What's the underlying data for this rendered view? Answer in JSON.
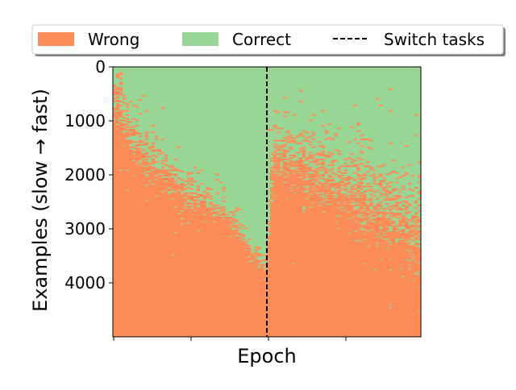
{
  "chart_data": {
    "type": "heatmap",
    "title": "",
    "xlabel": "Epoch",
    "ylabel": "Examples (slow → fast)",
    "y_ticks": [
      0,
      1000,
      2000,
      3000,
      4000
    ],
    "ylim": [
      5000,
      0
    ],
    "y_inverted": true,
    "x_tick_count": 4,
    "x_tick_labels_visible": false,
    "legend": {
      "placement": "top",
      "entries": [
        {
          "label": "Wrong",
          "kind": "patch",
          "color": "#fc8d59"
        },
        {
          "label": "Correct",
          "kind": "patch",
          "color": "#99d594"
        },
        {
          "label": "Switch tasks",
          "kind": "dashed-line",
          "color": "#000000"
        }
      ]
    },
    "colors": {
      "wrong": "#fc8d59",
      "correct": "#99d594",
      "switch_line": "#000000"
    },
    "switch_epoch_fraction": 0.5,
    "approx_boundary": {
      "description": "examples with index below the boundary are mostly correct; above are mostly wrong",
      "epoch_fraction": [
        0.0,
        0.05,
        0.1,
        0.2,
        0.3,
        0.4,
        0.45,
        0.5,
        0.52,
        0.6,
        0.7,
        0.8,
        0.9,
        1.0
      ],
      "example_index": [
        400,
        1100,
        1600,
        2100,
        2500,
        2900,
        3400,
        3700,
        1500,
        1700,
        2000,
        2300,
        2600,
        3000
      ]
    }
  }
}
